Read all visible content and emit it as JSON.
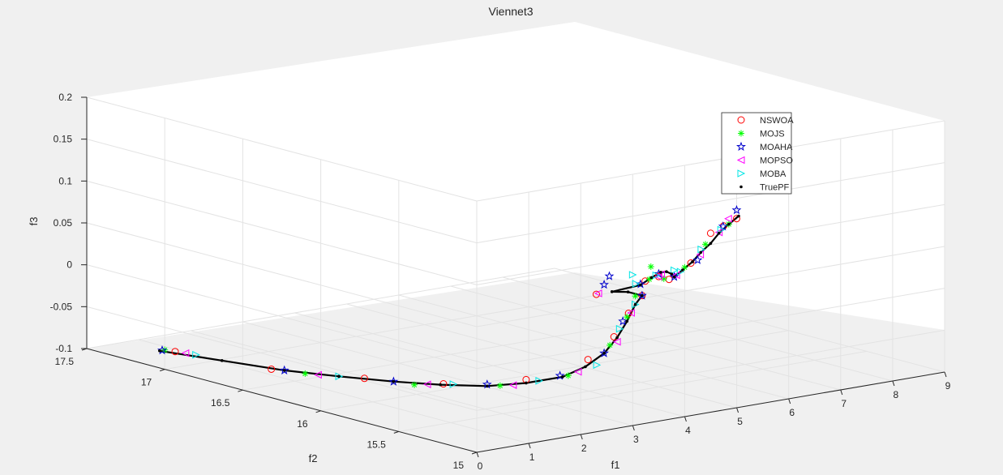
{
  "chart_data": {
    "type": "scatter",
    "title": "Viennet3",
    "xlabel": "f1",
    "ylabel": "f2",
    "zlabel": "f3",
    "xlim": [
      0,
      9
    ],
    "ylim": [
      15,
      17.5
    ],
    "zlim": [
      -0.1,
      0.2
    ],
    "x_ticks": [
      "0",
      "1",
      "2",
      "3",
      "4",
      "5",
      "6",
      "7",
      "8",
      "9"
    ],
    "y_ticks": [
      "15",
      "15.5",
      "16",
      "16.5",
      "17",
      "17.5"
    ],
    "z_ticks": [
      "-0.1",
      "-0.05",
      "0",
      "0.05",
      "0.1",
      "0.15",
      "0.2"
    ],
    "grid": true,
    "legend_position": "top-right",
    "series": [
      {
        "name": "NSWOA",
        "marker": "circle",
        "color": "#ff0000",
        "points": [
          [
            0.35,
            17.05,
            -0.085
          ],
          [
            0.7,
            16.55,
            -0.085
          ],
          [
            1.2,
            16.12,
            -0.08
          ],
          [
            1.7,
            15.78,
            -0.075
          ],
          [
            2.3,
            15.45,
            -0.06
          ],
          [
            2.8,
            15.22,
            -0.03
          ],
          [
            3.0,
            15.12,
            0.0
          ],
          [
            3.1,
            15.06,
            0.03
          ],
          [
            3.3,
            15.04,
            0.05
          ],
          [
            2.6,
            15.1,
            0.056
          ],
          [
            3.9,
            15.22,
            0.052
          ],
          [
            4.7,
            15.4,
            0.04
          ],
          [
            5.8,
            15.7,
            0.01
          ],
          [
            6.7,
            15.86,
            0.012
          ],
          [
            7.8,
            16.1,
            0.024
          ],
          [
            8.2,
            16.15,
            0.026
          ],
          [
            8.6,
            16.2,
            0.028
          ]
        ]
      },
      {
        "name": "MOJS",
        "marker": "asterisk",
        "color": "#00ff00",
        "points": [
          [
            0.3,
            17.1,
            -0.085
          ],
          [
            0.9,
            16.4,
            -0.085
          ],
          [
            1.5,
            15.9,
            -0.08
          ],
          [
            2.1,
            15.55,
            -0.07
          ],
          [
            2.6,
            15.28,
            -0.05
          ],
          [
            2.95,
            15.13,
            -0.01
          ],
          [
            3.1,
            15.07,
            0.025
          ],
          [
            3.2,
            15.05,
            0.05
          ],
          [
            3.2,
            14.95,
            0.09
          ],
          [
            4.1,
            15.26,
            0.05
          ],
          [
            5.4,
            15.6,
            0.02
          ],
          [
            6.4,
            15.8,
            0.013
          ],
          [
            7.4,
            16.0,
            0.02
          ],
          [
            8.3,
            16.15,
            0.027
          ]
        ]
      },
      {
        "name": "MOAHA",
        "marker": "pentagram",
        "color": "#0000cc",
        "points": [
          [
            0.25,
            17.1,
            -0.085
          ],
          [
            0.8,
            16.5,
            -0.085
          ],
          [
            1.4,
            16.0,
            -0.08
          ],
          [
            2.0,
            15.6,
            -0.07
          ],
          [
            2.5,
            15.3,
            -0.05
          ],
          [
            2.9,
            15.15,
            -0.02
          ],
          [
            3.05,
            15.08,
            0.02
          ],
          [
            3.3,
            15.04,
            0.05
          ],
          [
            2.6,
            15.05,
            0.07
          ],
          [
            2.85,
            15.1,
            0.075
          ],
          [
            3.6,
            15.15,
            0.055
          ],
          [
            5.0,
            15.5,
            0.035
          ],
          [
            5.9,
            15.7,
            0.012
          ],
          [
            6.8,
            15.85,
            0.015
          ],
          [
            8.1,
            16.12,
            0.028
          ],
          [
            8.9,
            16.3,
            0.03
          ]
        ]
      },
      {
        "name": "MOPSO",
        "marker": "triangle-left",
        "color": "#ff00ff",
        "points": [
          [
            0.4,
            17.0,
            -0.085
          ],
          [
            1.0,
            16.35,
            -0.085
          ],
          [
            1.6,
            15.85,
            -0.078
          ],
          [
            2.2,
            15.5,
            -0.068
          ],
          [
            2.7,
            15.25,
            -0.045
          ],
          [
            3.0,
            15.1,
            -0.005
          ],
          [
            3.15,
            15.06,
            0.03
          ],
          [
            2.7,
            15.12,
            0.055
          ],
          [
            4.4,
            15.3,
            0.048
          ],
          [
            5.2,
            15.55,
            0.03
          ],
          [
            6.0,
            15.72,
            0.012
          ],
          [
            7.0,
            15.9,
            0.017
          ],
          [
            7.9,
            16.08,
            0.025
          ],
          [
            8.5,
            16.22,
            0.028
          ]
        ]
      },
      {
        "name": "MOBA",
        "marker": "triangle-right",
        "color": "#00e5e5",
        "points": [
          [
            0.45,
            16.95,
            -0.085
          ],
          [
            1.1,
            16.25,
            -0.083
          ],
          [
            1.8,
            15.75,
            -0.075
          ],
          [
            2.4,
            15.4,
            -0.06
          ],
          [
            2.85,
            15.18,
            -0.035
          ],
          [
            3.05,
            15.1,
            0.01
          ],
          [
            3.2,
            15.05,
            0.04
          ],
          [
            3.0,
            15.0,
            0.08
          ],
          [
            3.6,
            15.18,
            0.054
          ],
          [
            4.5,
            15.35,
            0.046
          ],
          [
            5.6,
            15.6,
            0.028
          ],
          [
            6.2,
            15.76,
            0.012
          ],
          [
            7.2,
            15.96,
            0.018
          ],
          [
            8.0,
            16.1,
            0.026
          ]
        ]
      },
      {
        "name": "TruePF",
        "marker": "dot",
        "color": "#000000",
        "points": [
          [
            0.2,
            17.1,
            -0.085
          ],
          [
            0.5,
            16.8,
            -0.085
          ],
          [
            0.8,
            16.5,
            -0.085
          ],
          [
            1.1,
            16.25,
            -0.083
          ],
          [
            1.4,
            16.0,
            -0.08
          ],
          [
            1.7,
            15.8,
            -0.077
          ],
          [
            2.0,
            15.6,
            -0.072
          ],
          [
            2.3,
            15.45,
            -0.064
          ],
          [
            2.55,
            15.3,
            -0.052
          ],
          [
            2.75,
            15.22,
            -0.038
          ],
          [
            2.9,
            15.15,
            -0.02
          ],
          [
            3.0,
            15.1,
            0.0
          ],
          [
            3.1,
            15.07,
            0.02
          ],
          [
            3.2,
            15.05,
            0.04
          ],
          [
            3.3,
            15.04,
            0.05
          ],
          [
            3.0,
            15.03,
            0.058
          ],
          [
            2.75,
            15.05,
            0.06
          ],
          [
            3.6,
            15.15,
            0.054
          ],
          [
            4.2,
            15.28,
            0.05
          ],
          [
            4.8,
            15.42,
            0.043
          ],
          [
            5.3,
            15.55,
            0.032
          ],
          [
            5.7,
            15.65,
            0.02
          ],
          [
            5.9,
            15.7,
            0.012
          ],
          [
            6.3,
            15.78,
            0.012
          ],
          [
            6.7,
            15.85,
            0.014
          ],
          [
            7.1,
            15.93,
            0.017
          ],
          [
            7.5,
            16.0,
            0.02
          ],
          [
            7.9,
            16.08,
            0.024
          ],
          [
            8.3,
            16.15,
            0.027
          ],
          [
            8.7,
            16.22,
            0.029
          ]
        ]
      }
    ]
  }
}
